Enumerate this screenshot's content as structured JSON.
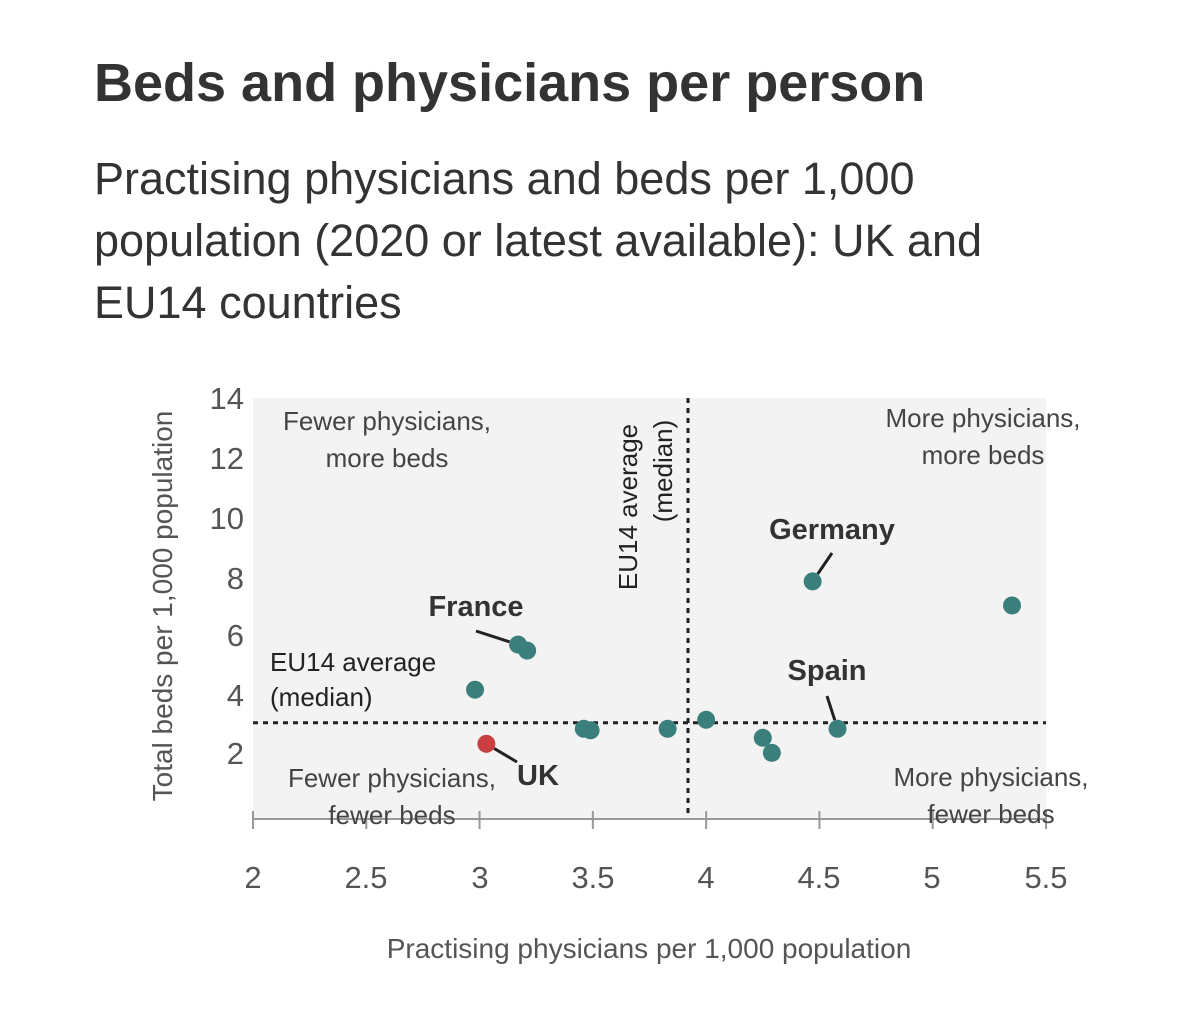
{
  "header": {
    "title": "Beds and physicians per person",
    "subtitle": "Practising physicians and beds per 1,000 population (2020 or latest available): UK and EU14 countries"
  },
  "chart_data": {
    "type": "scatter",
    "xlabel": "Practising physicians per 1,000 population",
    "ylabel": "Total beds per 1,000 population",
    "xlim": [
      2,
      5.5
    ],
    "ylim": [
      0,
      14
    ],
    "x_ticks": [
      "2",
      "2.5",
      "3",
      "3.5",
      "4",
      "4.5",
      "5",
      "5.5"
    ],
    "y_ticks": [
      "14",
      "12",
      "10",
      "8",
      "6",
      "4",
      "2"
    ],
    "medians": {
      "x": 3.92,
      "y": 3.2,
      "x_label": [
        "EU14 average",
        "(median)"
      ],
      "y_label": [
        "EU14 average",
        "(median)"
      ]
    },
    "quadrant_labels": {
      "top_left": [
        "Fewer physicians,",
        "more beds"
      ],
      "top_right": [
        "More physicians,",
        "more beds"
      ],
      "bottom_left": [
        "Fewer physicians,",
        "fewer beds"
      ],
      "bottom_right": [
        "More physicians,",
        "fewer beds"
      ]
    },
    "points": [
      {
        "x": 3.17,
        "y": 5.8
      },
      {
        "x": 3.21,
        "y": 5.6
      },
      {
        "x": 2.98,
        "y": 4.3
      },
      {
        "x": 3.03,
        "y": 2.5
      },
      {
        "x": 3.46,
        "y": 3.0
      },
      {
        "x": 3.49,
        "y": 2.95
      },
      {
        "x": 3.83,
        "y": 3.0
      },
      {
        "x": 4.0,
        "y": 3.3
      },
      {
        "x": 4.25,
        "y": 2.7
      },
      {
        "x": 4.29,
        "y": 2.2
      },
      {
        "x": 4.47,
        "y": 7.9
      },
      {
        "x": 4.58,
        "y": 3.0
      },
      {
        "x": 5.35,
        "y": 7.1
      }
    ],
    "callouts": [
      {
        "label": "France",
        "x": 3.17,
        "y": 5.8
      },
      {
        "label": "UK",
        "x": 3.03,
        "y": 2.5
      },
      {
        "label": "Germany",
        "x": 4.47,
        "y": 7.9
      },
      {
        "label": "Spain",
        "x": 4.58,
        "y": 3.0
      }
    ],
    "highlight": "UK",
    "colors": {
      "point": "#3a7f7b",
      "highlight": "#c8403f",
      "panel": "#f3f3f3",
      "median_line": "#222222"
    }
  }
}
